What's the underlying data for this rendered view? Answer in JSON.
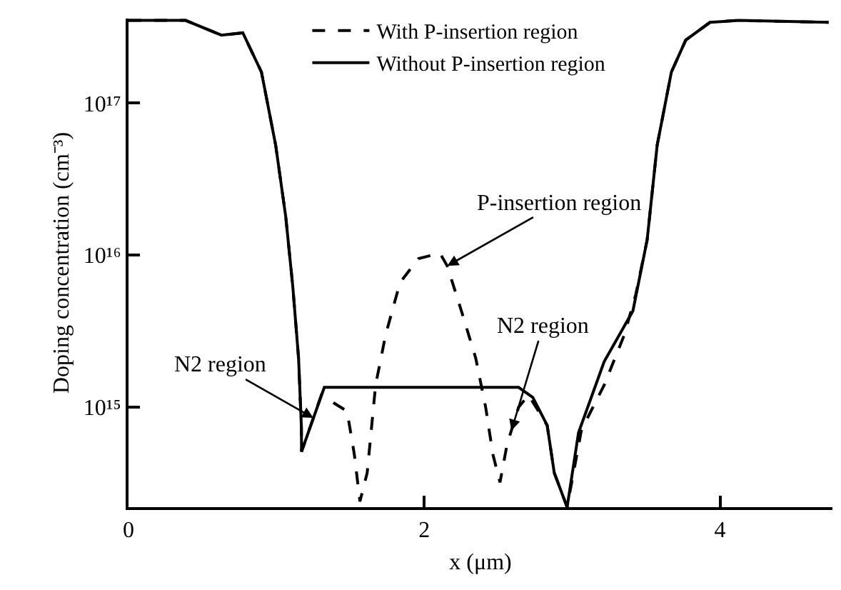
{
  "chart_data": {
    "type": "line",
    "xlabel": "x (μm)",
    "ylabel": "Doping concentration (cm⁻³)",
    "log": "y",
    "xlim": [
      0,
      4.76
    ],
    "xticks": [
      0,
      2,
      4
    ],
    "ylim": [
      220000000000000.0,
      3.6e+17
    ],
    "yticks": [
      {
        "value": 1000000000000000.0,
        "label": "10¹⁵"
      },
      {
        "value": 1e+16,
        "label": "10¹⁶"
      },
      {
        "value": 1e+17,
        "label": "10¹⁷"
      }
    ],
    "legend": "top",
    "marker": "none",
    "series": [
      {
        "name": "With P-insertion region",
        "color": "#000000",
        "line_style": "dashed",
        "x": [
          0,
          0.386,
          0.628,
          0.773,
          0.899,
          0.995,
          1.063,
          1.111,
          1.15,
          1.169,
          1.17,
          1.304,
          1.478,
          1.527,
          1.565,
          1.614,
          1.671,
          1.739,
          1.836,
          1.961,
          2.106,
          2.155,
          2.251,
          2.348,
          2.415,
          2.464,
          2.512,
          2.56,
          2.638,
          2.705,
          2.831,
          2.879,
          2.966,
          3.063,
          3.217,
          3.353,
          3.43,
          3.507,
          3.575,
          3.671,
          3.768,
          3.932,
          4.126,
          4.734
        ],
        "values": [
          3.5e+17,
          3.5e+17,
          2.8e+17,
          2.9e+17,
          1.6e+17,
          5.3e+16,
          1.8e+16,
          6200000000000000.0,
          2100000000000000.0,
          740000000000000.0,
          510000000000000.0,
          1200000000000000.0,
          940000000000000.0,
          490000000000000.0,
          240000000000000.0,
          370000000000000.0,
          1400000000000000.0,
          3000000000000000.0,
          6600000000000000.0,
          9500000000000000.0,
          1.03e+16,
          8500000000000000.0,
          4300000000000000.0,
          2100000000000000.0,
          1000000000000000.0,
          490000000000000.0,
          320000000000000.0,
          570000000000000.0,
          1000000000000000.0,
          1200000000000000.0,
          760000000000000.0,
          370000000000000.0,
          220000000000000.0,
          710000000000000.0,
          1400000000000000.0,
          3000000000000000.0,
          5500000000000000.0,
          1.26e+16,
          5.3e+16,
          1.6e+17,
          2.6e+17,
          3.4e+17,
          3.5e+17,
          3.4e+17
        ]
      },
      {
        "name": "Without P-insertion region",
        "color": "#000000",
        "line_style": "solid",
        "x": [
          0,
          0.386,
          0.628,
          0.773,
          0.899,
          0.995,
          1.063,
          1.111,
          1.15,
          1.169,
          1.17,
          1.324,
          2.638,
          2.734,
          2.831,
          2.879,
          2.966,
          3.043,
          3.217,
          3.411,
          3.507,
          3.575,
          3.671,
          3.768,
          3.932,
          4.126,
          4.734
        ],
        "values": [
          3.5e+17,
          3.5e+17,
          2.8e+17,
          2.9e+17,
          1.6e+17,
          5.3e+16,
          1.8e+16,
          6200000000000000.0,
          2100000000000000.0,
          740000000000000.0,
          510000000000000.0,
          1350000000000000.0,
          1350000000000000.0,
          1160000000000000.0,
          760000000000000.0,
          370000000000000.0,
          220000000000000.0,
          680000000000000.0,
          2000000000000000.0,
          4300000000000000.0,
          1.26e+16,
          5.3e+16,
          1.6e+17,
          2.6e+17,
          3.4e+17,
          3.5e+17,
          3.4e+17
        ]
      }
    ],
    "annotations": [
      {
        "text": "N2 region",
        "x": 1.25,
        "y": 850000000000000.0
      },
      {
        "text": "P-insertion region",
        "x": 2.155,
        "y": 8500000000000000.0
      },
      {
        "text": "N2 region",
        "x": 2.589,
        "y": 700000000000000.0
      }
    ]
  }
}
